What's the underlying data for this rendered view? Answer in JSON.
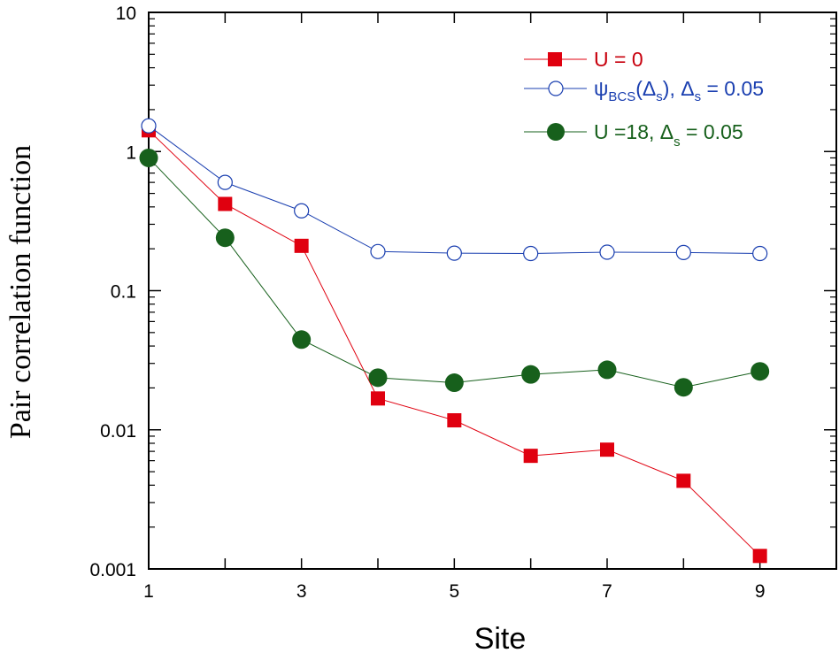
{
  "chart_data": {
    "type": "line",
    "title": "",
    "xlabel": "Site",
    "ylabel": "Pair correlation function",
    "xlim": [
      1,
      10
    ],
    "ylim": [
      0.001,
      10
    ],
    "yscale": "log",
    "x_ticks": [
      1,
      3,
      5,
      7,
      9
    ],
    "x_tick_labels": [
      "1",
      "3",
      "5",
      "7",
      "9"
    ],
    "y_ticks": [
      0.001,
      0.01,
      0.1,
      1,
      10
    ],
    "y_tick_labels": [
      "0.001",
      "0.01",
      "0.1",
      "1",
      "10"
    ],
    "grid": false,
    "legend_position": "top-right",
    "x": [
      1,
      2,
      3,
      4,
      5,
      6,
      7,
      8,
      9
    ],
    "series": [
      {
        "name": "U = 0",
        "legend_parts": {
          "main": "U = 0"
        },
        "color": "#e0000f",
        "marker": "filled-square",
        "values": [
          1.42,
          0.42,
          0.21,
          0.0168,
          0.0117,
          0.0065,
          0.0072,
          0.0043,
          0.00124
        ]
      },
      {
        "name": "ψBCS(Δs), Δs = 0.05",
        "legend_parts": {
          "psi": "ψ",
          "sub1": "BCS",
          "mid": "(Δ",
          "sub2": "s",
          "mid2": "), Δ",
          "sub3": "s",
          "end": " = 0.05"
        },
        "color": "#1a3fb0",
        "marker": "open-circle",
        "values": [
          1.53,
          0.6,
          0.375,
          0.191,
          0.186,
          0.185,
          0.189,
          0.188,
          0.185
        ]
      },
      {
        "name": "U =18, Δs = 0.05",
        "legend_parts": {
          "main": "U =18, Δ",
          "sub": "s",
          "end": " = 0.05"
        },
        "color": "#17601c",
        "marker": "filled-circle",
        "values": [
          0.9,
          0.24,
          0.0445,
          0.0237,
          0.0218,
          0.025,
          0.027,
          0.0202,
          0.0263
        ]
      }
    ]
  }
}
